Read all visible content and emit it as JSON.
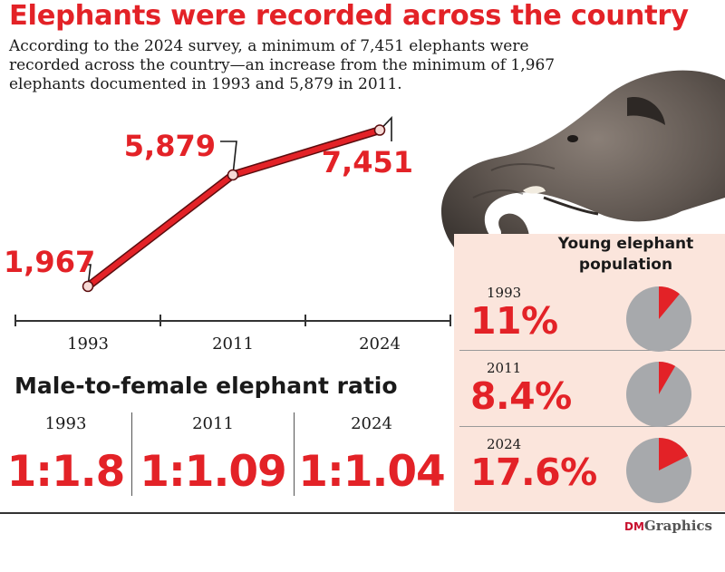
{
  "title": "Elephants were recorded across the country",
  "intro": "According to the 2024 survey, a minimum of 7,451 elephants were recorded across the country—an increase from the minimum of 1,967 elephants documented in 1993 and 5,879 in 2011.",
  "colors": {
    "accent": "#e32227",
    "panel": "#fbe5dc",
    "pie_gray": "#a7a9ac",
    "text": "#1a1a1a"
  },
  "chart_data": [
    {
      "type": "line",
      "x": [
        "1993",
        "2011",
        "2024"
      ],
      "series": [
        {
          "values": [
            1967,
            5879,
            7451
          ]
        }
      ],
      "data_labels": [
        "1,967",
        "5,879",
        "7,451"
      ],
      "ylim": [
        1200,
        8200
      ]
    },
    {
      "type": "pie",
      "title": "Young elephant population",
      "years": [
        "1993",
        "2011",
        "2024"
      ],
      "values": [
        11,
        8.4,
        17.6
      ],
      "labels": [
        "11%",
        "8.4%",
        "17.6%"
      ]
    }
  ],
  "ratio": {
    "title": "Male-to-female elephant ratio",
    "items": [
      {
        "year": "1993",
        "value": "1:1.8"
      },
      {
        "year": "2011",
        "value": "1:1.09"
      },
      {
        "year": "2024",
        "value": "1:1.04"
      }
    ]
  },
  "credit": {
    "prefix": "DM",
    "label": "Graphics"
  },
  "photo_icon": "elephant-photo"
}
